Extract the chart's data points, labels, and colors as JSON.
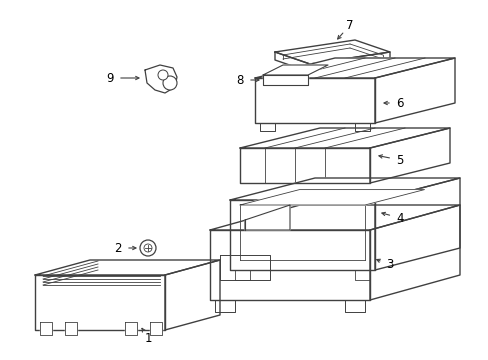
{
  "background_color": "#ffffff",
  "line_color": "#404040",
  "line_width": 1.0,
  "label_color": "#000000",
  "label_fontsize": 8.5,
  "fig_width": 4.89,
  "fig_height": 3.6,
  "dpi": 100
}
